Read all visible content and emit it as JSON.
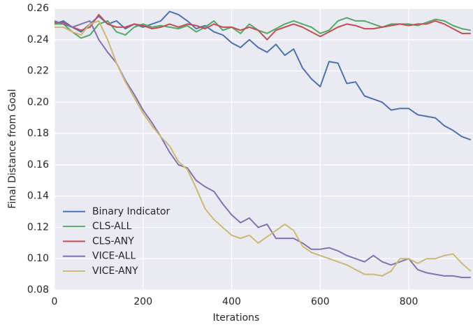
{
  "chart_data": {
    "type": "line",
    "xlabel": "Iterations",
    "ylabel": "Final Distance from Goal",
    "x": [
      0,
      20,
      40,
      60,
      80,
      100,
      120,
      140,
      160,
      180,
      200,
      220,
      240,
      260,
      280,
      300,
      320,
      340,
      360,
      380,
      400,
      420,
      440,
      460,
      480,
      500,
      520,
      540,
      560,
      580,
      600,
      620,
      640,
      660,
      680,
      700,
      720,
      740,
      760,
      780,
      800,
      820,
      840,
      860,
      880,
      900,
      920,
      940
    ],
    "series": [
      {
        "name": "Binary Indicator",
        "color": "#4c72b0",
        "values": [
          0.25,
          0.252,
          0.248,
          0.245,
          0.25,
          0.255,
          0.25,
          0.252,
          0.247,
          0.25,
          0.248,
          0.25,
          0.252,
          0.258,
          0.256,
          0.252,
          0.247,
          0.249,
          0.245,
          0.243,
          0.238,
          0.235,
          0.24,
          0.235,
          0.232,
          0.237,
          0.23,
          0.234,
          0.222,
          0.215,
          0.21,
          0.226,
          0.225,
          0.212,
          0.213,
          0.204,
          0.202,
          0.2,
          0.195,
          0.196,
          0.196,
          0.192,
          0.191,
          0.19,
          0.185,
          0.182,
          0.178,
          0.176
        ]
      },
      {
        "name": "CLS-ALL",
        "color": "#55a868",
        "values": [
          0.25,
          0.25,
          0.245,
          0.241,
          0.243,
          0.25,
          0.252,
          0.245,
          0.243,
          0.248,
          0.25,
          0.248,
          0.249,
          0.248,
          0.247,
          0.249,
          0.245,
          0.248,
          0.252,
          0.246,
          0.248,
          0.244,
          0.25,
          0.246,
          0.244,
          0.247,
          0.25,
          0.252,
          0.25,
          0.248,
          0.244,
          0.246,
          0.252,
          0.254,
          0.252,
          0.252,
          0.25,
          0.248,
          0.25,
          0.25,
          0.25,
          0.249,
          0.251,
          0.253,
          0.252,
          0.249,
          0.247,
          0.246
        ]
      },
      {
        "name": "CLS-ANY",
        "color": "#c44e52",
        "values": [
          0.251,
          0.251,
          0.248,
          0.246,
          0.248,
          0.256,
          0.25,
          0.248,
          0.248,
          0.25,
          0.249,
          0.247,
          0.248,
          0.25,
          0.248,
          0.25,
          0.249,
          0.247,
          0.25,
          0.248,
          0.248,
          0.246,
          0.248,
          0.246,
          0.24,
          0.246,
          0.248,
          0.25,
          0.248,
          0.245,
          0.242,
          0.245,
          0.248,
          0.25,
          0.249,
          0.247,
          0.247,
          0.248,
          0.249,
          0.25,
          0.249,
          0.25,
          0.25,
          0.252,
          0.25,
          0.247,
          0.244,
          0.244
        ]
      },
      {
        "name": "VICE-ALL",
        "color": "#8172b2",
        "values": [
          0.252,
          0.25,
          0.248,
          0.25,
          0.252,
          0.24,
          0.232,
          0.225,
          0.214,
          0.205,
          0.195,
          0.187,
          0.178,
          0.168,
          0.16,
          0.158,
          0.15,
          0.146,
          0.143,
          0.135,
          0.128,
          0.123,
          0.126,
          0.12,
          0.122,
          0.113,
          0.113,
          0.113,
          0.11,
          0.106,
          0.106,
          0.107,
          0.105,
          0.102,
          0.1,
          0.098,
          0.102,
          0.098,
          0.096,
          0.098,
          0.1,
          0.093,
          0.091,
          0.09,
          0.089,
          0.089,
          0.088,
          0.088
        ]
      },
      {
        "name": "VICE-ANY",
        "color": "#ccb974",
        "values": [
          0.248,
          0.248,
          0.245,
          0.243,
          0.25,
          0.252,
          0.24,
          0.225,
          0.213,
          0.203,
          0.193,
          0.185,
          0.178,
          0.172,
          0.162,
          0.157,
          0.145,
          0.132,
          0.125,
          0.12,
          0.115,
          0.113,
          0.115,
          0.11,
          0.114,
          0.118,
          0.122,
          0.118,
          0.108,
          0.104,
          0.102,
          0.1,
          0.098,
          0.096,
          0.093,
          0.09,
          0.09,
          0.089,
          0.092,
          0.1,
          0.1,
          0.097,
          0.1,
          0.1,
          0.102,
          0.103,
          0.097,
          0.092
        ]
      }
    ],
    "xlim": [
      0,
      945
    ],
    "xticks": [
      0,
      200,
      400,
      600,
      800
    ],
    "ylim": [
      0.08,
      0.26
    ],
    "yticks": [
      0.08,
      {
        "value": 0.1,
        "label": "0.10"
      },
      0.12,
      0.14,
      0.16,
      0.18,
      {
        "value": 0.2,
        "label": "0.20"
      },
      0.22,
      0.24,
      0.26
    ],
    "grid": true,
    "legend": "lower left"
  }
}
